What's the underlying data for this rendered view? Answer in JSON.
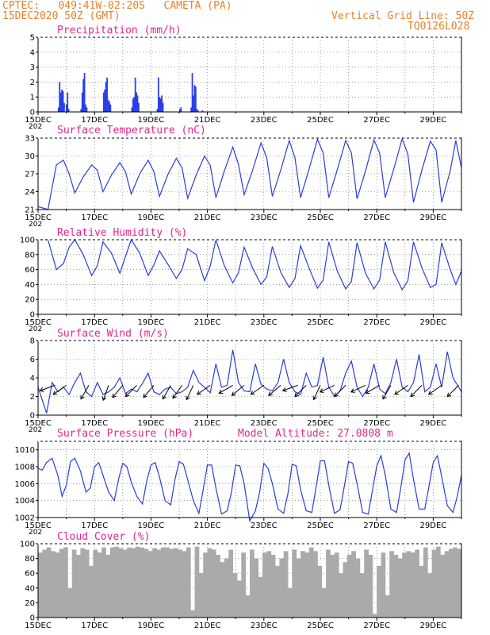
{
  "header": {
    "station": "CPTEC:   049:41W-02:20S   CAMETA (PA)",
    "date": "15DEC2020 50Z (GMT)",
    "grid_note": "Vertical Grid Line: 50Z",
    "code": "TQ0126L028"
  },
  "x_axis": {
    "tick_labels": [
      "15DEC",
      "17DEC",
      "19DEC",
      "21DEC",
      "23DEC",
      "25DEC",
      "27DEC",
      "29DEC"
    ],
    "year_fragment": "202",
    "days": 15
  },
  "colors": {
    "line": "#2a3fd6",
    "bar": "#2a3fe8",
    "title": "#e8248c",
    "header": "#e8822a",
    "cloud": "#aaaaaa"
  },
  "chart_data": [
    {
      "type": "bar",
      "title": "Precipitation (mm/h)",
      "ylim": [
        0,
        5
      ],
      "yticks": [
        0,
        1,
        2,
        3,
        4,
        5
      ],
      "yticklabels": [
        "0",
        "1",
        "2",
        "3",
        "4",
        "5"
      ],
      "x_day": [
        0.7,
        0.74,
        0.78,
        0.82,
        0.86,
        0.9,
        0.98,
        1.02,
        1.06,
        1.5,
        1.54,
        1.58,
        1.62,
        1.66,
        1.7,
        2.3,
        2.34,
        2.38,
        2.42,
        2.46,
        2.5,
        2.54,
        3.3,
        3.34,
        3.38,
        3.42,
        3.46,
        3.5,
        3.54,
        4.2,
        4.24,
        4.28,
        4.32,
        4.36,
        4.4,
        5.0,
        5.04,
        5.4,
        5.44,
        5.48,
        5.52,
        5.56,
        5.6,
        5.64,
        5.8
      ],
      "values": [
        0.3,
        2.0,
        1.3,
        1.5,
        1.4,
        0.6,
        0.5,
        1.3,
        0.2,
        0.2,
        1.3,
        2.2,
        2.6,
        0.5,
        0.3,
        1.3,
        1.5,
        2.0,
        2.3,
        0.8,
        0.7,
        0.5,
        0.3,
        0.9,
        1.0,
        2.3,
        1.3,
        1.1,
        0.6,
        0.2,
        2.3,
        1.0,
        0.9,
        1.1,
        0.6,
        0.2,
        0.3,
        0.3,
        2.6,
        1.1,
        1.8,
        1.7,
        0.2,
        0.1,
        0.1
      ]
    },
    {
      "type": "line",
      "title": "Surface Temperature (nC)",
      "ylim": [
        21,
        33
      ],
      "yticks": [
        21,
        24,
        27,
        30,
        33
      ],
      "yticklabels": [
        "21",
        "24",
        "27",
        "30",
        "33"
      ],
      "x_day": [
        0.0,
        0.35,
        0.65,
        0.9,
        1.1,
        1.3,
        1.6,
        1.9,
        2.1,
        2.3,
        2.6,
        2.9,
        3.1,
        3.3,
        3.6,
        3.9,
        4.1,
        4.3,
        4.6,
        4.9,
        5.1,
        5.3,
        5.6,
        5.9,
        6.1,
        6.3,
        6.6,
        6.9,
        7.1,
        7.3,
        7.6,
        7.9,
        8.1,
        8.3,
        8.6,
        8.9,
        9.1,
        9.3,
        9.6,
        9.9,
        10.1,
        10.3,
        10.6,
        10.9,
        11.1,
        11.3,
        11.6,
        11.9,
        12.1,
        12.3,
        12.6,
        12.9,
        13.1,
        13.3,
        13.6,
        13.9,
        14.1,
        14.3,
        14.6,
        14.8,
        15.0
      ],
      "values": [
        21.5,
        21.0,
        28.5,
        29.3,
        27.0,
        23.8,
        26.5,
        28.5,
        27.6,
        24.0,
        26.8,
        28.9,
        27.3,
        23.6,
        27.0,
        29.3,
        27.4,
        23.2,
        26.9,
        29.6,
        28.0,
        22.9,
        26.8,
        30.0,
        28.4,
        23.0,
        27.5,
        31.5,
        28.6,
        23.5,
        27.6,
        32.2,
        29.7,
        23.2,
        27.7,
        32.6,
        29.7,
        23.0,
        27.8,
        32.8,
        30.5,
        23.0,
        27.7,
        32.6,
        30.5,
        22.8,
        27.5,
        32.7,
        30.5,
        23.0,
        27.8,
        32.9,
        30.3,
        22.2,
        27.7,
        32.5,
        31.0,
        22.2,
        27.5,
        32.6,
        28.0
      ]
    },
    {
      "type": "line",
      "title": "Relative Humidity (%)",
      "ylim": [
        0,
        100
      ],
      "yticks": [
        0,
        20,
        40,
        60,
        80,
        100
      ],
      "yticklabels": [
        "0",
        "20",
        "40",
        "60",
        "80",
        "100"
      ],
      "x_day": [
        0.0,
        0.35,
        0.65,
        0.9,
        1.1,
        1.3,
        1.6,
        1.9,
        2.1,
        2.3,
        2.6,
        2.9,
        3.1,
        3.3,
        3.6,
        3.9,
        4.1,
        4.3,
        4.6,
        4.9,
        5.1,
        5.3,
        5.6,
        5.9,
        6.1,
        6.3,
        6.6,
        6.9,
        7.1,
        7.3,
        7.6,
        7.9,
        8.1,
        8.3,
        8.6,
        8.9,
        9.1,
        9.3,
        9.6,
        9.9,
        10.1,
        10.3,
        10.6,
        10.9,
        11.1,
        11.3,
        11.6,
        11.9,
        12.1,
        12.3,
        12.6,
        12.9,
        13.1,
        13.3,
        13.6,
        13.9,
        14.1,
        14.3,
        14.6,
        14.8,
        15.0
      ],
      "values": [
        100,
        100,
        60,
        68,
        90,
        100,
        80,
        52,
        65,
        97,
        82,
        55,
        78,
        100,
        82,
        52,
        66,
        85,
        67,
        48,
        60,
        88,
        80,
        45,
        65,
        100,
        65,
        42,
        56,
        90,
        62,
        40,
        50,
        91,
        56,
        36,
        48,
        92,
        62,
        35,
        46,
        97,
        58,
        34,
        44,
        96,
        55,
        34,
        46,
        97,
        56,
        33,
        45,
        97,
        62,
        36,
        40,
        96,
        60,
        40,
        58
      ]
    },
    {
      "type": "line",
      "title": "Surface Wind (m/s)",
      "ylim": [
        0,
        8
      ],
      "yticks": [
        0,
        2,
        4,
        6,
        8
      ],
      "yticklabels": [
        "0",
        "2",
        "4",
        "6",
        "8"
      ],
      "x_day": [
        0.0,
        0.3,
        0.5,
        0.7,
        0.9,
        1.1,
        1.3,
        1.5,
        1.7,
        1.9,
        2.1,
        2.3,
        2.5,
        2.7,
        2.9,
        3.1,
        3.3,
        3.5,
        3.7,
        3.9,
        4.1,
        4.3,
        4.5,
        4.7,
        4.9,
        5.1,
        5.3,
        5.5,
        5.7,
        5.9,
        6.1,
        6.3,
        6.5,
        6.7,
        6.9,
        7.1,
        7.3,
        7.5,
        7.7,
        7.9,
        8.1,
        8.3,
        8.5,
        8.7,
        8.9,
        9.1,
        9.3,
        9.5,
        9.7,
        9.9,
        10.1,
        10.3,
        10.5,
        10.7,
        10.9,
        11.1,
        11.3,
        11.5,
        11.7,
        11.9,
        12.1,
        12.3,
        12.5,
        12.7,
        12.9,
        13.1,
        13.3,
        13.5,
        13.7,
        13.9,
        14.1,
        14.3,
        14.5,
        14.7,
        15.0
      ],
      "values": [
        3.0,
        0.2,
        3.5,
        2.5,
        3.0,
        2.2,
        3.5,
        4.5,
        2.5,
        2.0,
        3.5,
        2.2,
        2.5,
        3.0,
        4.0,
        2.3,
        2.8,
        2.5,
        3.4,
        4.5,
        2.5,
        2.2,
        2.8,
        3.0,
        2.3,
        2.5,
        3.0,
        4.8,
        3.5,
        3.0,
        2.4,
        5.5,
        3.0,
        3.2,
        7.0,
        3.5,
        2.6,
        2.5,
        5.5,
        3.3,
        2.8,
        2.6,
        3.5,
        6.0,
        3.5,
        2.5,
        2.2,
        4.5,
        3.0,
        3.2,
        6.2,
        3.0,
        2.0,
        2.6,
        4.5,
        5.8,
        3.0,
        2.0,
        3.0,
        5.5,
        2.8,
        2.3,
        3.5,
        6.0,
        3.0,
        2.5,
        3.5,
        6.5,
        2.5,
        3.0,
        5.5,
        3.0,
        6.8,
        4.0,
        2.5
      ],
      "arrows_day": [
        0.6,
        1.0,
        1.8,
        2.5,
        3.0,
        3.5,
        4.1,
        4.7,
        5.1,
        5.5,
        6.1,
        6.9,
        7.3,
        8.0,
        8.6,
        9.2,
        9.5,
        10.0,
        10.5,
        10.9,
        11.6,
        12.1,
        12.5,
        13.1,
        13.6,
        14.3,
        14.9
      ],
      "arrow_dir_deg": [
        200,
        215,
        240,
        250,
        230,
        225,
        230,
        240,
        235,
        245,
        215,
        210,
        220,
        215,
        220,
        200,
        225,
        245,
        205,
        225,
        205,
        210,
        240,
        215,
        225,
        215,
        225
      ]
    },
    {
      "type": "line",
      "title": "Surface Pressure (hPa)",
      "annotation": "Model Altitude: 27.0808 m",
      "ylim": [
        1002,
        1011
      ],
      "yticks": [
        1002,
        1004,
        1006,
        1008,
        1010
      ],
      "yticklabels": [
        "1002",
        "1004",
        "1006",
        "1008",
        "1010"
      ],
      "x_day": [
        0.0,
        0.15,
        0.3,
        0.5,
        0.7,
        0.85,
        1.0,
        1.15,
        1.3,
        1.5,
        1.7,
        1.85,
        2.0,
        2.15,
        2.3,
        2.5,
        2.7,
        2.85,
        3.0,
        3.15,
        3.3,
        3.5,
        3.7,
        3.85,
        4.0,
        4.15,
        4.3,
        4.5,
        4.7,
        4.85,
        5.0,
        5.15,
        5.3,
        5.5,
        5.7,
        5.85,
        6.0,
        6.15,
        6.3,
        6.5,
        6.7,
        6.85,
        7.0,
        7.15,
        7.3,
        7.5,
        7.7,
        7.85,
        8.0,
        8.15,
        8.3,
        8.5,
        8.7,
        8.85,
        9.0,
        9.15,
        9.3,
        9.5,
        9.7,
        9.85,
        10.0,
        10.15,
        10.3,
        10.5,
        10.7,
        10.85,
        11.0,
        11.15,
        11.3,
        11.5,
        11.7,
        11.85,
        12.0,
        12.15,
        12.3,
        12.5,
        12.7,
        12.85,
        13.0,
        13.15,
        13.3,
        13.5,
        13.7,
        13.85,
        14.0,
        14.15,
        14.3,
        14.5,
        14.7,
        14.85,
        15.0
      ],
      "values": [
        1007.8,
        1007.6,
        1008.5,
        1009.0,
        1007.0,
        1004.5,
        1005.8,
        1008.6,
        1009.0,
        1007.5,
        1005.0,
        1005.5,
        1008.0,
        1008.5,
        1007.0,
        1005.0,
        1004.0,
        1006.5,
        1008.4,
        1008.0,
        1006.2,
        1004.5,
        1003.6,
        1006.3,
        1008.2,
        1008.5,
        1006.8,
        1004.0,
        1003.5,
        1006.5,
        1008.6,
        1008.3,
        1006.5,
        1004.0,
        1002.5,
        1005.3,
        1008.2,
        1008.2,
        1005.5,
        1002.4,
        1002.8,
        1005.0,
        1008.2,
        1008.1,
        1006.0,
        1001.6,
        1002.8,
        1005.0,
        1008.4,
        1007.8,
        1006.0,
        1003.0,
        1002.5,
        1004.8,
        1008.3,
        1008.1,
        1005.3,
        1002.8,
        1002.6,
        1005.6,
        1008.7,
        1008.7,
        1005.8,
        1002.5,
        1002.9,
        1005.7,
        1008.6,
        1008.4,
        1006.0,
        1002.6,
        1002.4,
        1005.3,
        1008.1,
        1009.3,
        1007.0,
        1003.0,
        1002.6,
        1005.5,
        1008.8,
        1009.6,
        1006.5,
        1003.0,
        1003.0,
        1005.7,
        1008.5,
        1009.3,
        1006.8,
        1003.4,
        1002.6,
        1004.5,
        1007.0
      ]
    },
    {
      "type": "bar",
      "title": "Cloud Cover (%)",
      "ylim": [
        0,
        100
      ],
      "yticks": [
        0,
        20,
        40,
        60,
        80,
        100
      ],
      "yticklabels": [
        "0",
        "20",
        "40",
        "60",
        "80",
        "100"
      ],
      "x_day": [
        0.0,
        0.15,
        0.3,
        0.45,
        0.6,
        0.75,
        0.9,
        1.05,
        1.2,
        1.35,
        1.5,
        1.65,
        1.8,
        1.95,
        2.1,
        2.25,
        2.4,
        2.55,
        2.7,
        2.85,
        3.0,
        3.15,
        3.3,
        3.45,
        3.6,
        3.75,
        3.9,
        4.05,
        4.2,
        4.35,
        4.5,
        4.65,
        4.8,
        4.95,
        5.1,
        5.25,
        5.4,
        5.55,
        5.7,
        5.85,
        6.0,
        6.15,
        6.3,
        6.45,
        6.6,
        6.75,
        6.9,
        7.05,
        7.2,
        7.35,
        7.5,
        7.65,
        7.8,
        7.95,
        8.1,
        8.25,
        8.4,
        8.55,
        8.7,
        8.85,
        9.0,
        9.15,
        9.3,
        9.45,
        9.6,
        9.75,
        9.9,
        10.05,
        10.2,
        10.35,
        10.5,
        10.65,
        10.8,
        10.95,
        11.1,
        11.25,
        11.4,
        11.55,
        11.7,
        11.85,
        12.0,
        12.15,
        12.3,
        12.45,
        12.6,
        12.75,
        12.9,
        13.05,
        13.2,
        13.35,
        13.5,
        13.65,
        13.8,
        13.95,
        14.1,
        14.25,
        14.4,
        14.55,
        14.7,
        14.85
      ],
      "values": [
        88,
        92,
        95,
        90,
        88,
        93,
        95,
        40,
        92,
        85,
        94,
        92,
        70,
        92,
        88,
        95,
        85,
        95,
        96,
        94,
        92,
        95,
        94,
        96,
        95,
        93,
        90,
        94,
        92,
        95,
        95,
        93,
        94,
        92,
        90,
        95,
        10,
        96,
        60,
        88,
        94,
        92,
        85,
        75,
        80,
        92,
        60,
        50,
        88,
        30,
        92,
        80,
        55,
        88,
        90,
        85,
        70,
        80,
        90,
        40,
        92,
        80,
        90,
        88,
        95,
        90,
        70,
        40,
        92,
        85,
        88,
        60,
        75,
        85,
        90,
        80,
        60,
        92,
        85,
        5,
        70,
        88,
        30,
        90,
        85,
        80,
        88,
        90,
        88,
        92,
        70,
        95,
        60,
        92,
        96,
        85,
        90,
        93,
        95,
        93
      ]
    }
  ]
}
